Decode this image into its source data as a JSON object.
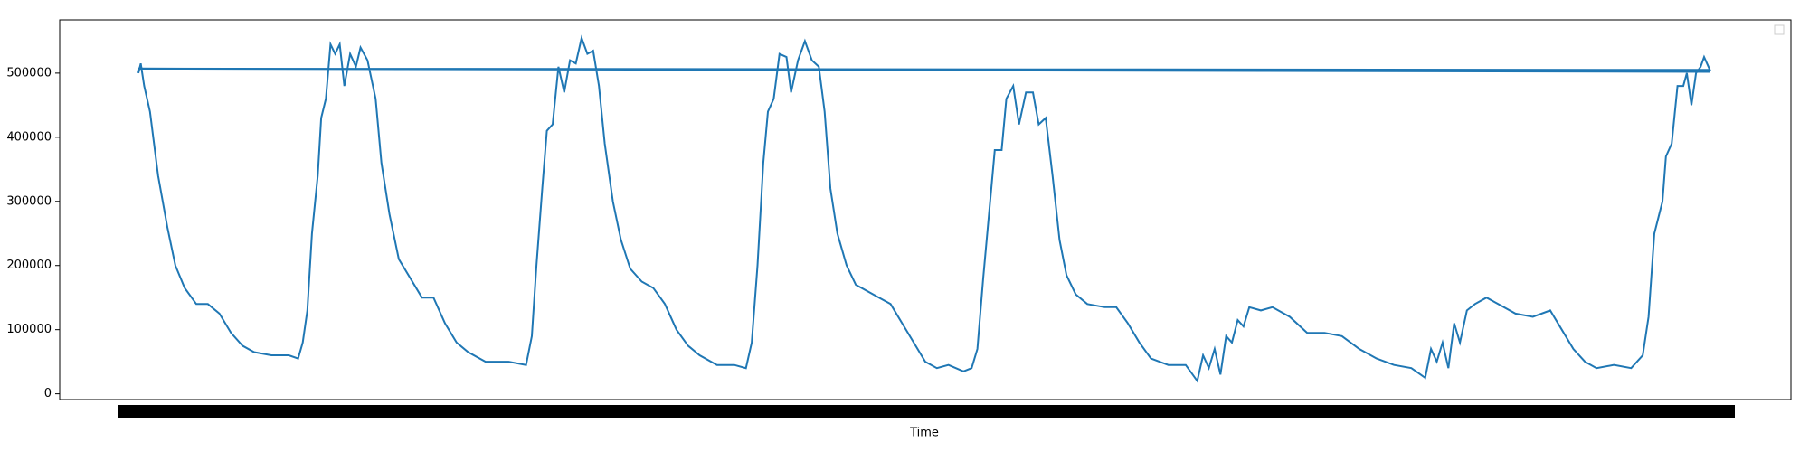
{
  "chart_data": {
    "type": "line",
    "xlabel": "Time",
    "x": [
      0,
      2,
      5,
      10,
      17,
      25,
      32,
      40,
      50,
      60,
      70,
      80,
      90,
      100,
      115,
      130,
      138,
      142,
      146,
      150,
      155,
      158,
      162,
      166,
      170,
      174,
      178,
      183,
      188,
      192,
      198,
      205,
      210,
      217,
      225,
      235,
      245,
      255,
      265,
      275,
      285,
      300,
      320,
      335,
      340,
      344,
      349,
      353,
      358,
      363,
      368,
      373,
      378,
      383,
      388,
      393,
      398,
      403,
      410,
      417,
      425,
      435,
      445,
      455,
      465,
      475,
      485,
      500,
      515,
      525,
      530,
      535,
      540,
      544,
      549,
      554,
      560,
      564,
      570,
      576,
      582,
      588,
      593,
      598,
      604,
      612,
      620,
      630,
      640,
      650,
      660,
      670,
      680,
      690,
      700,
      713,
      720,
      725,
      730,
      735,
      740,
      746,
      750,
      756,
      761,
      767,
      773,
      778,
      784,
      790,
      796,
      802,
      810,
      820,
      835,
      845,
      855,
      865,
      875,
      890,
      905,
      915,
      920,
      925,
      930,
      935,
      940,
      945,
      950,
      955,
      960,
      970,
      980,
      995,
      1010,
      1025,
      1040,
      1055,
      1070,
      1085,
      1100,
      1112,
      1117,
      1122,
      1127,
      1132,
      1137,
      1142,
      1148,
      1155,
      1165,
      1175,
      1190,
      1205,
      1220,
      1230,
      1240,
      1250,
      1260,
      1275,
      1290,
      1300,
      1305,
      1310,
      1317,
      1320,
      1325,
      1330,
      1335,
      1338,
      1342,
      1346,
      1350,
      1353,
      1358,
      0,
      1358
    ],
    "values": [
      500000,
      515000,
      480000,
      440000,
      340000,
      260000,
      200000,
      165000,
      140000,
      140000,
      125000,
      95000,
      75000,
      65000,
      60000,
      60000,
      55000,
      80000,
      130000,
      250000,
      340000,
      430000,
      460000,
      545000,
      530000,
      545000,
      480000,
      530000,
      510000,
      540000,
      520000,
      460000,
      360000,
      280000,
      210000,
      180000,
      150000,
      150000,
      110000,
      80000,
      65000,
      50000,
      50000,
      45000,
      90000,
      200000,
      320000,
      410000,
      420000,
      510000,
      470000,
      520000,
      515000,
      555000,
      530000,
      535000,
      480000,
      390000,
      300000,
      240000,
      195000,
      175000,
      165000,
      140000,
      100000,
      75000,
      60000,
      45000,
      45000,
      40000,
      80000,
      200000,
      360000,
      440000,
      460000,
      530000,
      525000,
      470000,
      520000,
      550000,
      520000,
      510000,
      440000,
      320000,
      250000,
      200000,
      170000,
      160000,
      150000,
      140000,
      110000,
      80000,
      50000,
      40000,
      45000,
      35000,
      40000,
      70000,
      180000,
      280000,
      380000,
      380000,
      460000,
      480000,
      420000,
      470000,
      470000,
      420000,
      430000,
      340000,
      240000,
      185000,
      155000,
      140000,
      135000,
      135000,
      110000,
      80000,
      55000,
      45000,
      45000,
      20000,
      60000,
      40000,
      70000,
      30000,
      90000,
      80000,
      115000,
      105000,
      135000,
      130000,
      135000,
      120000,
      95000,
      95000,
      90000,
      70000,
      55000,
      45000,
      40000,
      25000,
      70000,
      50000,
      80000,
      40000,
      110000,
      80000,
      130000,
      140000,
      150000,
      140000,
      125000,
      120000,
      130000,
      100000,
      70000,
      50000,
      40000,
      45000,
      40000,
      60000,
      120000,
      250000,
      300000,
      370000,
      390000,
      480000,
      480000,
      500000,
      450000,
      500000,
      510000,
      525000,
      505000,
      507000,
      502000
    ],
    "color": "#1f77b4",
    "xlim": [
      -68,
      1428
    ],
    "ylim": [
      -9000,
      583000
    ],
    "yticks": [
      0,
      100000,
      200000,
      300000,
      400000,
      500000
    ]
  }
}
